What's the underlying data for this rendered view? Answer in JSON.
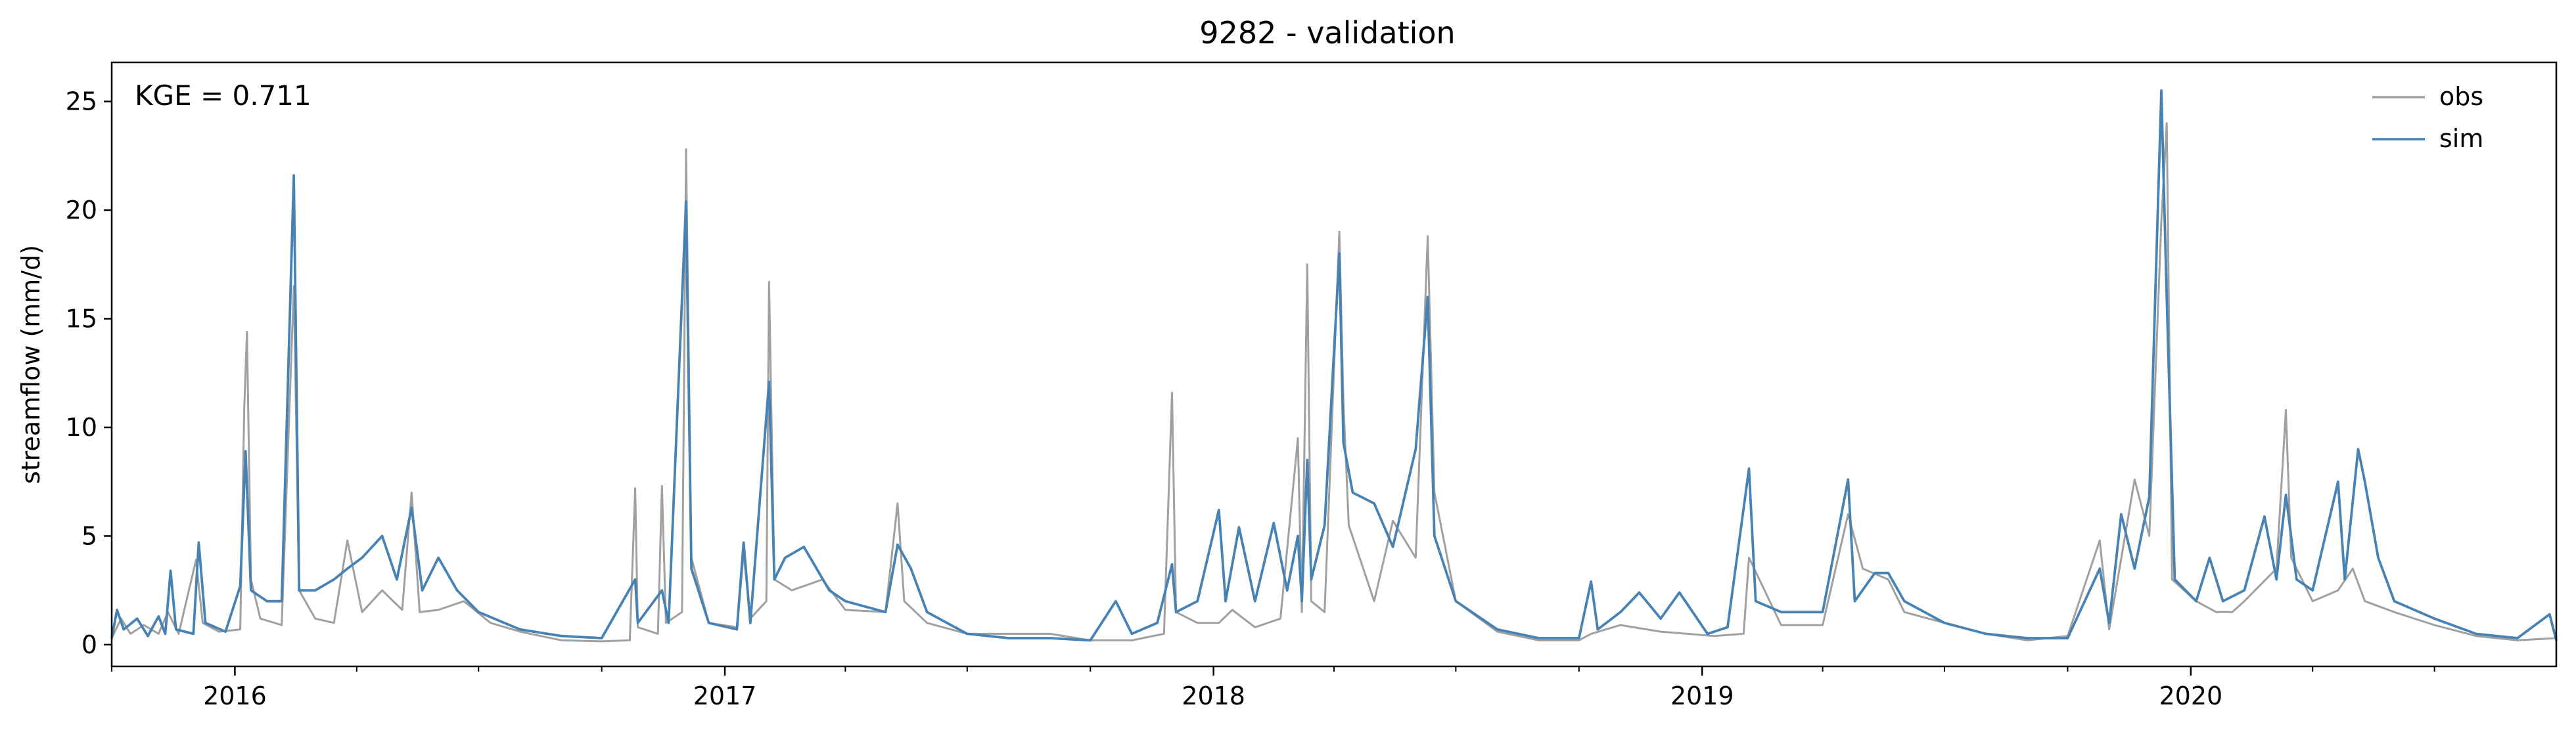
{
  "chart_data": {
    "type": "line",
    "title": "9282 - validation",
    "xlabel": "",
    "ylabel": "streamflow (mm/d)",
    "annotation": "KGE = 0.711",
    "annotation_position": "top-left",
    "xlim": [
      "2015-10-01",
      "2020-09-30"
    ],
    "ylim": [
      -1,
      26.8
    ],
    "yticks": [
      0,
      5,
      10,
      15,
      20,
      25
    ],
    "xticks": [
      {
        "date": "2016-01-01",
        "label": "2016"
      },
      {
        "date": "2017-01-01",
        "label": "2017"
      },
      {
        "date": "2018-01-01",
        "label": "2018"
      },
      {
        "date": "2019-01-01",
        "label": "2019"
      },
      {
        "date": "2020-01-01",
        "label": "2020"
      }
    ],
    "grid": false,
    "legend": "top-right",
    "series": [
      {
        "name": "obs",
        "color": "#a0a0a0",
        "points": [
          [
            "2015-10-01",
            0.3
          ],
          [
            "2015-10-08",
            1.2
          ],
          [
            "2015-10-15",
            0.5
          ],
          [
            "2015-10-25",
            0.9
          ],
          [
            "2015-11-05",
            0.5
          ],
          [
            "2015-11-12",
            1.5
          ],
          [
            "2015-11-20",
            0.5
          ],
          [
            "2015-12-03",
            3.9
          ],
          [
            "2015-12-08",
            1.0
          ],
          [
            "2015-12-20",
            0.6
          ],
          [
            "2016-01-05",
            0.7
          ],
          [
            "2016-01-08",
            10.9
          ],
          [
            "2016-01-10",
            14.4
          ],
          [
            "2016-01-13",
            3.0
          ],
          [
            "2016-01-20",
            1.2
          ],
          [
            "2016-02-05",
            0.9
          ],
          [
            "2016-02-14",
            16.5
          ],
          [
            "2016-02-18",
            2.5
          ],
          [
            "2016-03-01",
            1.2
          ],
          [
            "2016-03-15",
            1.0
          ],
          [
            "2016-03-25",
            4.8
          ],
          [
            "2016-04-05",
            1.5
          ],
          [
            "2016-04-20",
            2.5
          ],
          [
            "2016-05-05",
            1.6
          ],
          [
            "2016-05-12",
            7.0
          ],
          [
            "2016-05-18",
            1.5
          ],
          [
            "2016-06-01",
            1.6
          ],
          [
            "2016-06-20",
            2.0
          ],
          [
            "2016-07-10",
            1.0
          ],
          [
            "2016-08-01",
            0.6
          ],
          [
            "2016-09-01",
            0.2
          ],
          [
            "2016-10-01",
            0.15
          ],
          [
            "2016-10-22",
            0.2
          ],
          [
            "2016-10-26",
            7.2
          ],
          [
            "2016-10-28",
            0.8
          ],
          [
            "2016-11-12",
            0.5
          ],
          [
            "2016-11-15",
            7.3
          ],
          [
            "2016-11-18",
            1.0
          ],
          [
            "2016-11-30",
            1.5
          ],
          [
            "2016-12-03",
            22.8
          ],
          [
            "2016-12-07",
            4.0
          ],
          [
            "2016-12-20",
            1.0
          ],
          [
            "2017-01-10",
            0.8
          ],
          [
            "2017-01-15",
            4.2
          ],
          [
            "2017-01-20",
            1.2
          ],
          [
            "2017-02-01",
            2.0
          ],
          [
            "2017-02-03",
            16.7
          ],
          [
            "2017-02-07",
            3.0
          ],
          [
            "2017-02-20",
            2.5
          ],
          [
            "2017-03-15",
            3.0
          ],
          [
            "2017-04-01",
            1.6
          ],
          [
            "2017-05-01",
            1.5
          ],
          [
            "2017-05-10",
            6.5
          ],
          [
            "2017-05-15",
            2.0
          ],
          [
            "2017-06-01",
            1.0
          ],
          [
            "2017-07-01",
            0.5
          ],
          [
            "2017-08-01",
            0.5
          ],
          [
            "2017-09-01",
            0.5
          ],
          [
            "2017-10-01",
            0.2
          ],
          [
            "2017-11-01",
            0.2
          ],
          [
            "2017-11-25",
            0.5
          ],
          [
            "2017-12-01",
            11.6
          ],
          [
            "2017-12-04",
            1.5
          ],
          [
            "2017-12-20",
            1.0
          ],
          [
            "2018-01-05",
            1.0
          ],
          [
            "2018-01-15",
            1.6
          ],
          [
            "2018-02-01",
            0.8
          ],
          [
            "2018-02-20",
            1.2
          ],
          [
            "2018-03-05",
            9.5
          ],
          [
            "2018-03-08",
            1.5
          ],
          [
            "2018-03-12",
            17.5
          ],
          [
            "2018-03-15",
            2.0
          ],
          [
            "2018-03-25",
            1.5
          ],
          [
            "2018-04-05",
            19.0
          ],
          [
            "2018-04-08",
            11.2
          ],
          [
            "2018-04-12",
            5.5
          ],
          [
            "2018-05-01",
            2.0
          ],
          [
            "2018-05-15",
            5.7
          ],
          [
            "2018-06-01",
            4.0
          ],
          [
            "2018-06-10",
            18.8
          ],
          [
            "2018-06-15",
            7.0
          ],
          [
            "2018-07-01",
            2.0
          ],
          [
            "2018-08-01",
            0.6
          ],
          [
            "2018-09-01",
            0.2
          ],
          [
            "2018-10-01",
            0.2
          ],
          [
            "2018-10-10",
            0.5
          ],
          [
            "2018-11-01",
            0.9
          ],
          [
            "2018-12-01",
            0.6
          ],
          [
            "2019-01-10",
            0.4
          ],
          [
            "2019-02-01",
            0.5
          ],
          [
            "2019-02-05",
            4.0
          ],
          [
            "2019-03-01",
            0.9
          ],
          [
            "2019-04-01",
            0.9
          ],
          [
            "2019-04-20",
            6.0
          ],
          [
            "2019-05-01",
            3.5
          ],
          [
            "2019-05-20",
            3.0
          ],
          [
            "2019-06-01",
            1.5
          ],
          [
            "2019-07-01",
            1.0
          ],
          [
            "2019-08-01",
            0.5
          ],
          [
            "2019-09-01",
            0.2
          ],
          [
            "2019-10-01",
            0.4
          ],
          [
            "2019-10-25",
            4.8
          ],
          [
            "2019-11-01",
            0.7
          ],
          [
            "2019-11-20",
            7.6
          ],
          [
            "2019-12-01",
            5.0
          ],
          [
            "2019-12-10",
            19.5
          ],
          [
            "2019-12-14",
            24.0
          ],
          [
            "2019-12-18",
            3.0
          ],
          [
            "2020-01-05",
            2.0
          ],
          [
            "2020-01-20",
            1.5
          ],
          [
            "2020-02-01",
            1.5
          ],
          [
            "2020-02-10",
            2.0
          ],
          [
            "2020-03-05",
            3.5
          ],
          [
            "2020-03-12",
            10.8
          ],
          [
            "2020-03-16",
            4.0
          ],
          [
            "2020-04-01",
            2.0
          ],
          [
            "2020-04-20",
            2.5
          ],
          [
            "2020-05-01",
            3.5
          ],
          [
            "2020-05-10",
            2.0
          ],
          [
            "2020-06-01",
            1.5
          ],
          [
            "2020-07-01",
            0.9
          ],
          [
            "2020-08-01",
            0.4
          ],
          [
            "2020-09-01",
            0.2
          ],
          [
            "2020-09-30",
            0.3
          ]
        ]
      },
      {
        "name": "sim",
        "color": "#4682b4",
        "points": [
          [
            "2015-10-01",
            0.3
          ],
          [
            "2015-10-05",
            1.6
          ],
          [
            "2015-10-10",
            0.7
          ],
          [
            "2015-10-20",
            1.2
          ],
          [
            "2015-10-28",
            0.4
          ],
          [
            "2015-11-05",
            1.3
          ],
          [
            "2015-11-10",
            0.5
          ],
          [
            "2015-11-14",
            3.4
          ],
          [
            "2015-11-18",
            0.7
          ],
          [
            "2015-12-01",
            0.5
          ],
          [
            "2015-12-05",
            4.7
          ],
          [
            "2015-12-10",
            1.0
          ],
          [
            "2015-12-25",
            0.6
          ],
          [
            "2016-01-05",
            2.7
          ],
          [
            "2016-01-09",
            8.9
          ],
          [
            "2016-01-13",
            2.5
          ],
          [
            "2016-01-25",
            2.0
          ],
          [
            "2016-02-05",
            2.0
          ],
          [
            "2016-02-14",
            21.6
          ],
          [
            "2016-02-18",
            2.5
          ],
          [
            "2016-03-01",
            2.5
          ],
          [
            "2016-03-15",
            3.0
          ],
          [
            "2016-03-25",
            3.5
          ],
          [
            "2016-04-05",
            4.0
          ],
          [
            "2016-04-20",
            5.0
          ],
          [
            "2016-05-01",
            3.0
          ],
          [
            "2016-05-12",
            6.3
          ],
          [
            "2016-05-20",
            2.5
          ],
          [
            "2016-06-01",
            4.0
          ],
          [
            "2016-06-15",
            2.5
          ],
          [
            "2016-07-01",
            1.5
          ],
          [
            "2016-08-01",
            0.7
          ],
          [
            "2016-09-01",
            0.4
          ],
          [
            "2016-10-01",
            0.3
          ],
          [
            "2016-10-26",
            3.0
          ],
          [
            "2016-10-28",
            1.0
          ],
          [
            "2016-11-15",
            2.5
          ],
          [
            "2016-11-20",
            1.0
          ],
          [
            "2016-12-03",
            20.4
          ],
          [
            "2016-12-07",
            3.5
          ],
          [
            "2016-12-20",
            1.0
          ],
          [
            "2017-01-10",
            0.7
          ],
          [
            "2017-01-15",
            4.7
          ],
          [
            "2017-01-20",
            1.0
          ],
          [
            "2017-02-03",
            12.1
          ],
          [
            "2017-02-07",
            3.0
          ],
          [
            "2017-02-15",
            4.0
          ],
          [
            "2017-03-01",
            4.5
          ],
          [
            "2017-03-20",
            2.5
          ],
          [
            "2017-04-01",
            2.0
          ],
          [
            "2017-05-01",
            1.5
          ],
          [
            "2017-05-10",
            4.6
          ],
          [
            "2017-05-20",
            3.5
          ],
          [
            "2017-06-01",
            1.5
          ],
          [
            "2017-07-01",
            0.5
          ],
          [
            "2017-08-01",
            0.3
          ],
          [
            "2017-09-01",
            0.3
          ],
          [
            "2017-10-01",
            0.2
          ],
          [
            "2017-10-20",
            2.0
          ],
          [
            "2017-11-01",
            0.5
          ],
          [
            "2017-11-20",
            1.0
          ],
          [
            "2017-12-01",
            3.7
          ],
          [
            "2017-12-04",
            1.5
          ],
          [
            "2017-12-20",
            2.0
          ],
          [
            "2018-01-05",
            6.2
          ],
          [
            "2018-01-10",
            2.0
          ],
          [
            "2018-01-20",
            5.4
          ],
          [
            "2018-02-01",
            2.0
          ],
          [
            "2018-02-15",
            5.6
          ],
          [
            "2018-02-25",
            2.5
          ],
          [
            "2018-03-05",
            5.0
          ],
          [
            "2018-03-08",
            2.0
          ],
          [
            "2018-03-12",
            8.5
          ],
          [
            "2018-03-15",
            3.0
          ],
          [
            "2018-03-25",
            5.5
          ],
          [
            "2018-04-05",
            18.0
          ],
          [
            "2018-04-08",
            9.3
          ],
          [
            "2018-04-15",
            7.0
          ],
          [
            "2018-05-01",
            6.5
          ],
          [
            "2018-05-15",
            4.5
          ],
          [
            "2018-06-01",
            9.0
          ],
          [
            "2018-06-10",
            16.0
          ],
          [
            "2018-06-15",
            5.0
          ],
          [
            "2018-07-01",
            2.0
          ],
          [
            "2018-08-01",
            0.7
          ],
          [
            "2018-09-01",
            0.3
          ],
          [
            "2018-10-01",
            0.3
          ],
          [
            "2018-10-10",
            2.9
          ],
          [
            "2018-10-15",
            0.7
          ],
          [
            "2018-11-01",
            1.5
          ],
          [
            "2018-11-15",
            2.4
          ],
          [
            "2018-12-01",
            1.2
          ],
          [
            "2018-12-15",
            2.4
          ],
          [
            "2019-01-05",
            0.5
          ],
          [
            "2019-01-20",
            0.8
          ],
          [
            "2019-02-05",
            8.1
          ],
          [
            "2019-02-10",
            2.0
          ],
          [
            "2019-03-01",
            1.5
          ],
          [
            "2019-04-01",
            1.5
          ],
          [
            "2019-04-20",
            7.6
          ],
          [
            "2019-04-25",
            2.0
          ],
          [
            "2019-05-10",
            3.3
          ],
          [
            "2019-05-20",
            3.3
          ],
          [
            "2019-06-01",
            2.0
          ],
          [
            "2019-07-01",
            1.0
          ],
          [
            "2019-08-01",
            0.5
          ],
          [
            "2019-09-01",
            0.3
          ],
          [
            "2019-10-01",
            0.3
          ],
          [
            "2019-10-25",
            3.5
          ],
          [
            "2019-11-01",
            1.0
          ],
          [
            "2019-11-10",
            6.0
          ],
          [
            "2019-11-20",
            3.5
          ],
          [
            "2019-12-01",
            6.8
          ],
          [
            "2019-12-10",
            25.5
          ],
          [
            "2019-12-14",
            16.0
          ],
          [
            "2019-12-20",
            3.0
          ],
          [
            "2020-01-05",
            2.0
          ],
          [
            "2020-01-15",
            4.0
          ],
          [
            "2020-01-25",
            2.0
          ],
          [
            "2020-02-10",
            2.5
          ],
          [
            "2020-02-25",
            5.9
          ],
          [
            "2020-03-05",
            3.0
          ],
          [
            "2020-03-12",
            6.9
          ],
          [
            "2020-03-20",
            3.0
          ],
          [
            "2020-04-01",
            2.5
          ],
          [
            "2020-04-20",
            7.5
          ],
          [
            "2020-04-25",
            3.0
          ],
          [
            "2020-05-05",
            9.0
          ],
          [
            "2020-05-10",
            7.5
          ],
          [
            "2020-05-20",
            4.0
          ],
          [
            "2020-06-01",
            2.0
          ],
          [
            "2020-07-01",
            1.2
          ],
          [
            "2020-08-01",
            0.5
          ],
          [
            "2020-09-01",
            0.3
          ],
          [
            "2020-09-25",
            1.4
          ],
          [
            "2020-09-30",
            0.2
          ]
        ]
      }
    ]
  }
}
